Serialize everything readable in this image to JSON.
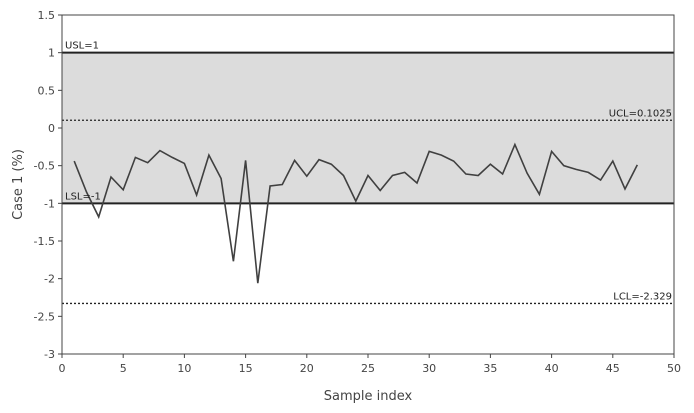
{
  "chart_data": {
    "type": "line",
    "title": "",
    "xlabel": "Sample index",
    "ylabel": "Case 1 (%)",
    "xlim": [
      0,
      50
    ],
    "ylim": [
      -3,
      1.5
    ],
    "x_ticks": [
      0,
      5,
      10,
      15,
      20,
      25,
      30,
      35,
      40,
      45,
      50
    ],
    "y_ticks": [
      -3,
      -2.5,
      -2,
      -1.5,
      -1,
      -0.5,
      0,
      0.5,
      1,
      1.5
    ],
    "grid": false,
    "spec_band": {
      "from": -1,
      "to": 1,
      "color": "#dcdcdc"
    },
    "limits": [
      {
        "id": "usl",
        "value": 1,
        "label": "USL=1",
        "style": "solid",
        "label_position": "left"
      },
      {
        "id": "ucl",
        "value": 0.1025,
        "label": "UCL=0.1025",
        "style": "dotted",
        "label_position": "right"
      },
      {
        "id": "lsl",
        "value": -1,
        "label": "LSL=-1",
        "style": "solid",
        "label_position": "left"
      },
      {
        "id": "lcl",
        "value": -2.329,
        "label": "LCL=-2.329",
        "style": "dotted",
        "label_position": "right"
      }
    ],
    "series": [
      {
        "color": "#404040",
        "x": [
          1,
          2,
          3,
          4,
          5,
          6,
          7,
          8,
          9,
          10,
          11,
          12,
          13,
          14,
          15,
          16,
          17,
          18,
          19,
          20,
          21,
          22,
          23,
          24,
          25,
          26,
          27,
          28,
          29,
          30,
          31,
          32,
          33,
          34,
          35,
          36,
          37,
          38,
          39,
          40,
          41,
          42,
          43,
          44,
          45,
          46,
          47
        ],
        "values": [
          -0.44,
          -0.85,
          -1.18,
          -0.65,
          -0.82,
          -0.39,
          -0.46,
          -0.3,
          -0.39,
          -0.47,
          -0.89,
          -0.36,
          -0.67,
          -1.77,
          -0.43,
          -2.06,
          -0.77,
          -0.75,
          -0.43,
          -0.64,
          -0.42,
          -0.48,
          -0.63,
          -0.97,
          -0.63,
          -0.83,
          -0.63,
          -0.59,
          -0.73,
          -0.31,
          -0.36,
          -0.44,
          -0.61,
          -0.63,
          -0.48,
          -0.61,
          -0.22,
          -0.6,
          -0.88,
          -0.31,
          -0.5,
          -0.55,
          -0.59,
          -0.69,
          -0.44,
          -0.81,
          -0.49
        ]
      }
    ]
  }
}
